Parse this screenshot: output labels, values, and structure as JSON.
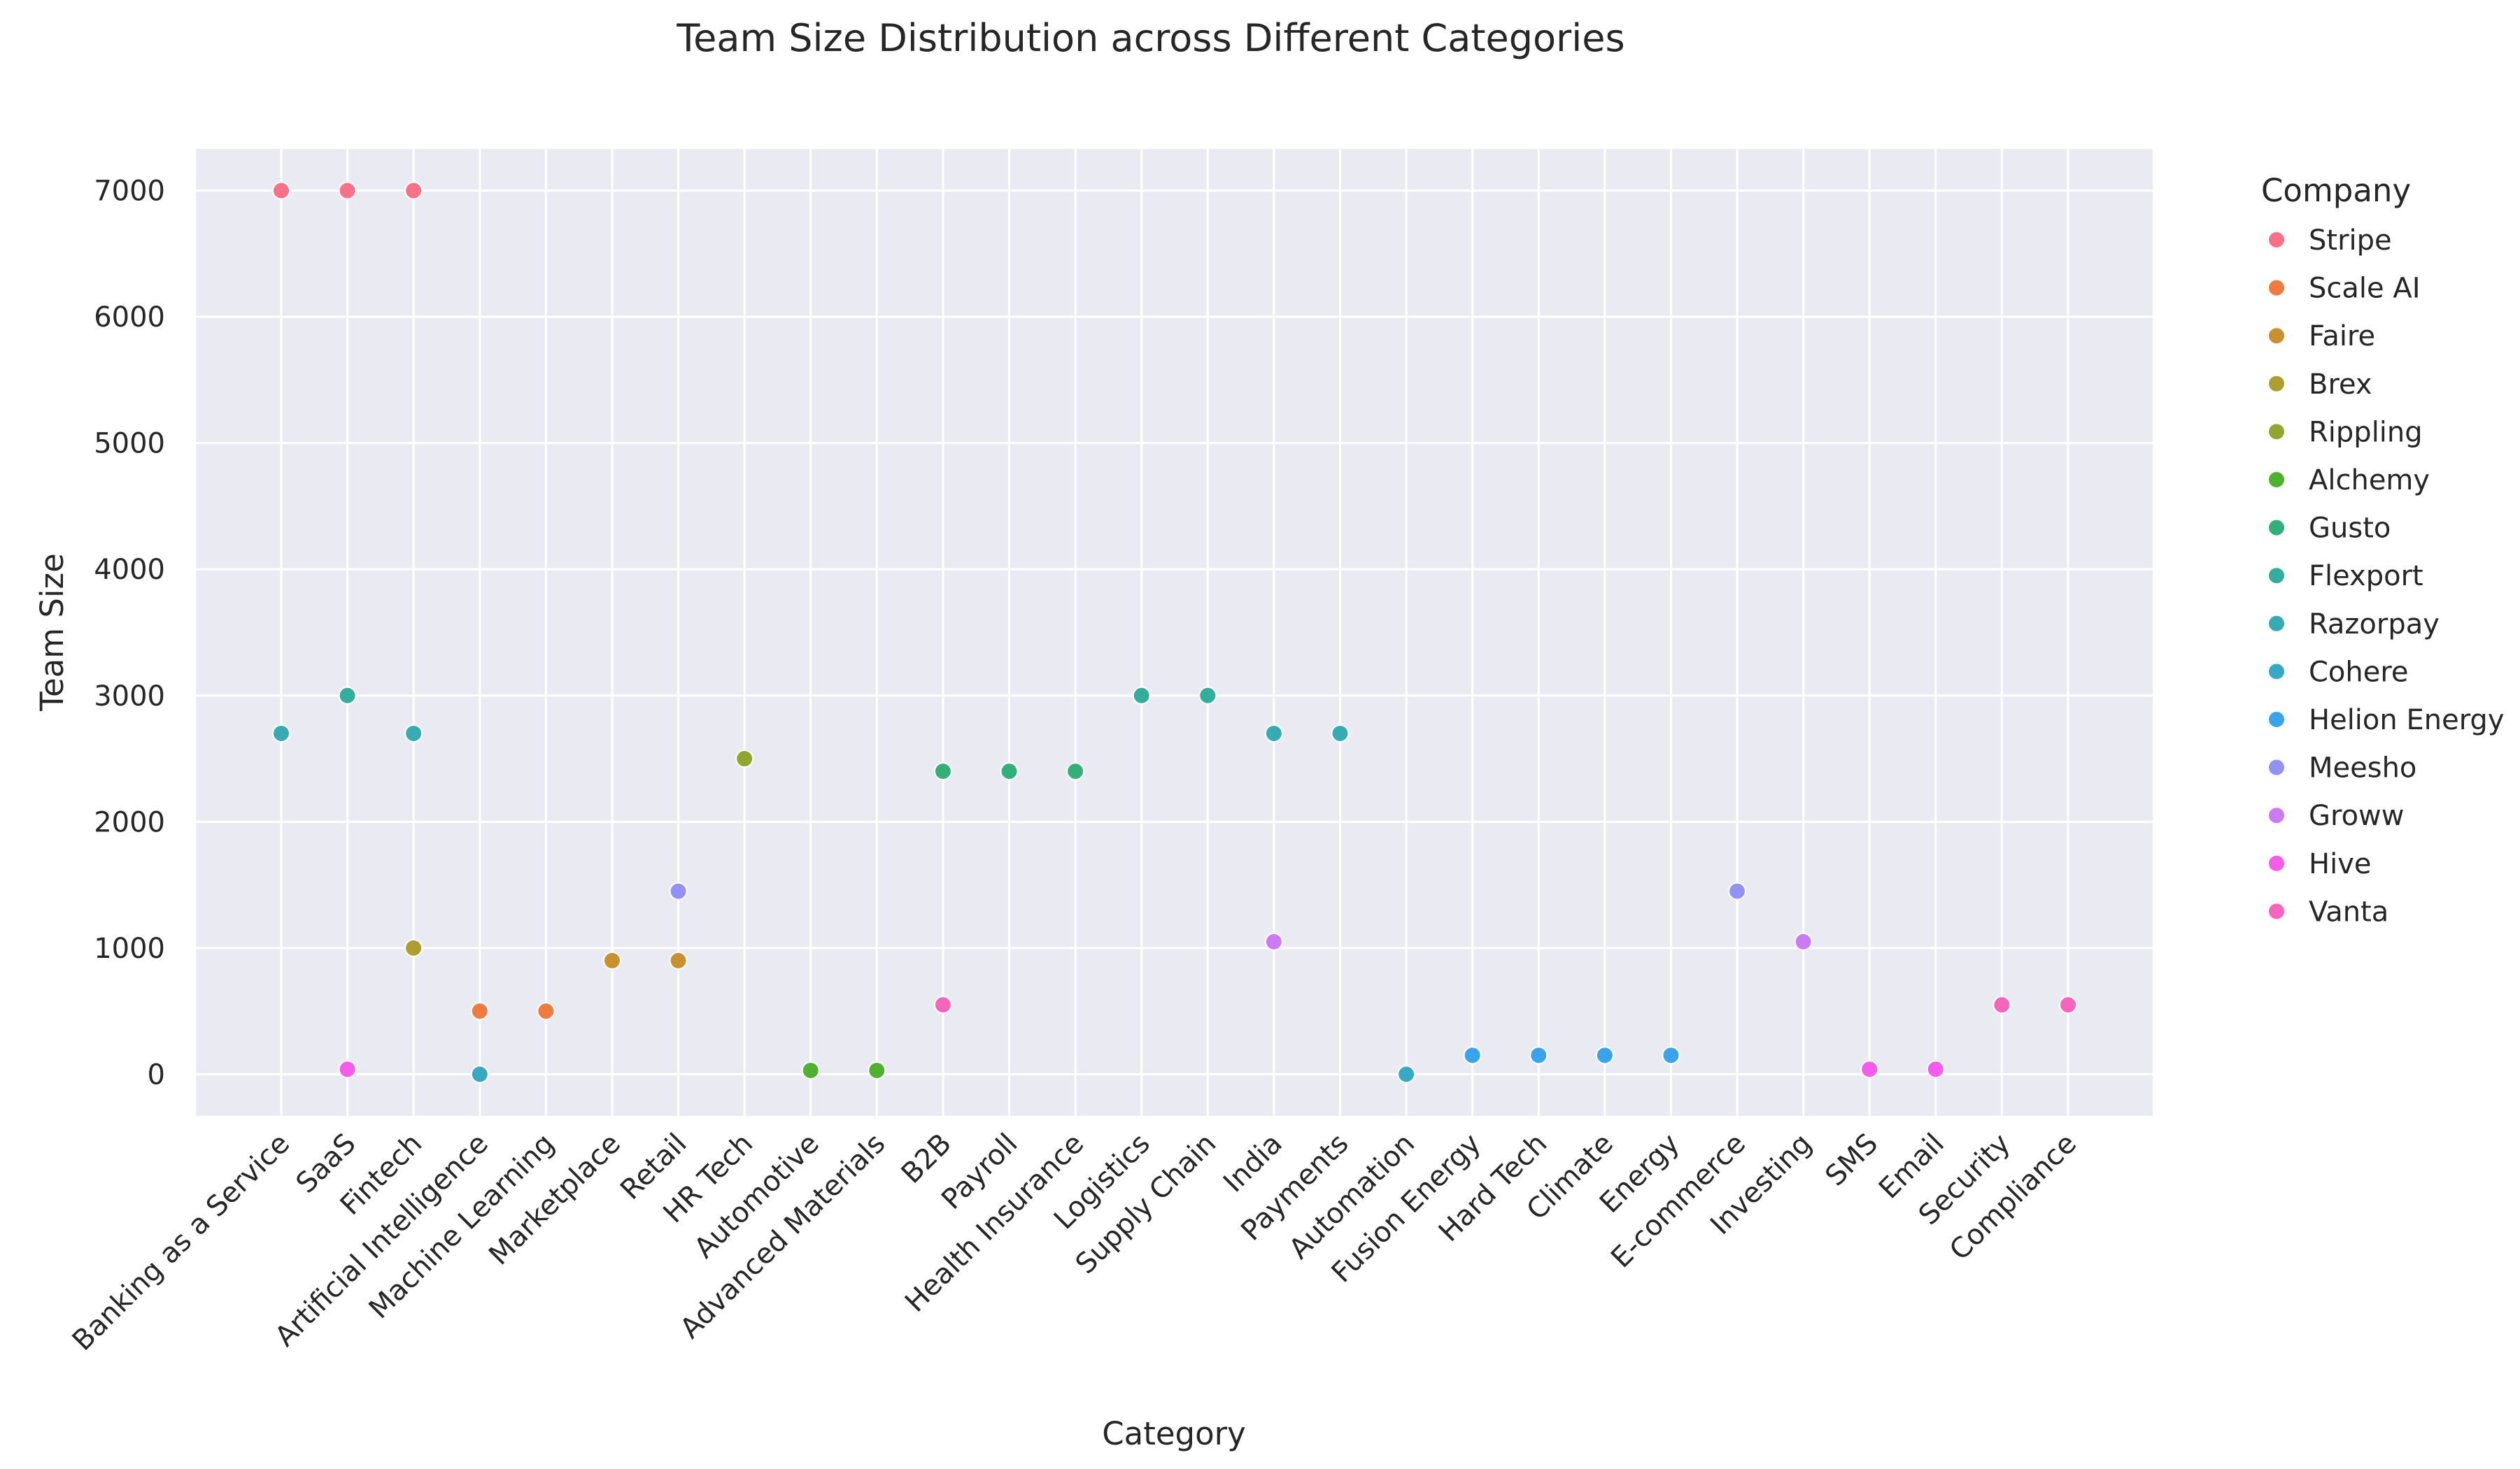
{
  "chart_data": {
    "type": "scatter",
    "title": "Team Size Distribution across Different Categories",
    "xlabel": "Category",
    "ylabel": "Team Size",
    "ylim": [
      -330,
      7330
    ],
    "yticks": [
      0,
      1000,
      2000,
      3000,
      4000,
      5000,
      6000,
      7000
    ],
    "grid": true,
    "legend_title": "Company",
    "legend_placement": "outside-right",
    "categories": [
      "Banking as a Service",
      "SaaS",
      "Fintech",
      "Artificial Intelligence",
      "Machine Learning",
      "Marketplace",
      "Retail",
      "HR Tech",
      "Automotive",
      "Advanced Materials",
      "B2B",
      "Payroll",
      "Health Insurance",
      "Logistics",
      "Supply Chain",
      "India",
      "Payments",
      "Automation",
      "Fusion Energy",
      "Hard Tech",
      "Climate",
      "Energy",
      "E-commerce",
      "Investing",
      "SMS",
      "Email",
      "Security",
      "Compliance"
    ],
    "series": [
      {
        "name": "Stripe",
        "color": "#f77189",
        "points": [
          {
            "x": "Banking as a Service",
            "y": 7000
          },
          {
            "x": "SaaS",
            "y": 7000
          },
          {
            "x": "Fintech",
            "y": 7000
          }
        ]
      },
      {
        "name": "Scale AI",
        "color": "#f07b3f",
        "points": [
          {
            "x": "Artificial Intelligence",
            "y": 500
          },
          {
            "x": "Machine Learning",
            "y": 500
          }
        ]
      },
      {
        "name": "Faire",
        "color": "#c9902f",
        "points": [
          {
            "x": "Marketplace",
            "y": 900
          },
          {
            "x": "Retail",
            "y": 900
          }
        ]
      },
      {
        "name": "Brex",
        "color": "#ae9d31",
        "points": [
          {
            "x": "Fintech",
            "y": 1000
          }
        ]
      },
      {
        "name": "Rippling",
        "color": "#8fa731",
        "points": [
          {
            "x": "HR Tech",
            "y": 2500
          }
        ]
      },
      {
        "name": "Alchemy",
        "color": "#50b131",
        "points": [
          {
            "x": "Automotive",
            "y": 30
          },
          {
            "x": "Advanced Materials",
            "y": 30
          }
        ]
      },
      {
        "name": "Gusto",
        "color": "#33b07a",
        "points": [
          {
            "x": "B2B",
            "y": 2400
          },
          {
            "x": "Payroll",
            "y": 2400
          },
          {
            "x": "Health Insurance",
            "y": 2400
          }
        ]
      },
      {
        "name": "Flexport",
        "color": "#35ad9c",
        "points": [
          {
            "x": "SaaS",
            "y": 3000
          },
          {
            "x": "Logistics",
            "y": 3000
          },
          {
            "x": "Supply Chain",
            "y": 3000
          }
        ]
      },
      {
        "name": "Razorpay",
        "color": "#37abb4",
        "points": [
          {
            "x": "Banking as a Service",
            "y": 2700
          },
          {
            "x": "Fintech",
            "y": 2700
          },
          {
            "x": "India",
            "y": 2700
          },
          {
            "x": "Payments",
            "y": 2700
          }
        ]
      },
      {
        "name": "Cohere",
        "color": "#38a9c5",
        "points": [
          {
            "x": "Artificial Intelligence",
            "y": 0
          },
          {
            "x": "Automation",
            "y": 0
          }
        ]
      },
      {
        "name": "Helion Energy",
        "color": "#3ba3ec",
        "points": [
          {
            "x": "Fusion Energy",
            "y": 150
          },
          {
            "x": "Hard Tech",
            "y": 150
          },
          {
            "x": "Climate",
            "y": 150
          },
          {
            "x": "Energy",
            "y": 150
          }
        ]
      },
      {
        "name": "Meesho",
        "color": "#9491f4",
        "points": [
          {
            "x": "Retail",
            "y": 1450
          },
          {
            "x": "E-commerce",
            "y": 1450
          }
        ]
      },
      {
        "name": "Groww",
        "color": "#cc7af4",
        "points": [
          {
            "x": "India",
            "y": 1050
          },
          {
            "x": "Investing",
            "y": 1050
          }
        ]
      },
      {
        "name": "Hive",
        "color": "#f45dea",
        "points": [
          {
            "x": "SaaS",
            "y": 40
          },
          {
            "x": "SMS",
            "y": 40
          },
          {
            "x": "Email",
            "y": 40
          }
        ]
      },
      {
        "name": "Vanta",
        "color": "#f565bd",
        "points": [
          {
            "x": "B2B",
            "y": 550
          },
          {
            "x": "Security",
            "y": 550
          },
          {
            "x": "Compliance",
            "y": 550
          }
        ]
      }
    ]
  }
}
